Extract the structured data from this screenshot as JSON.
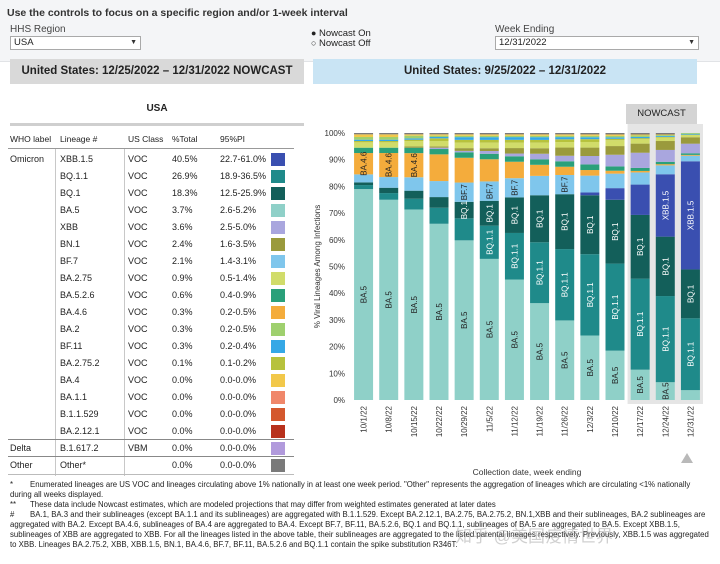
{
  "controls": {
    "instruction": "Use the controls to focus on a specific region and/or 1-week interval",
    "region_label": "HHS Region",
    "region_value": "USA",
    "nowcast_on": "Nowcast On",
    "nowcast_off": "Nowcast Off",
    "week_label": "Week Ending",
    "week_value": "12/31/2022"
  },
  "headers": {
    "left": "United States: 12/25/2022 – 12/31/2022 NOWCAST",
    "right": "United States: 9/25/2022 – 12/31/2022"
  },
  "table": {
    "title": "USA",
    "columns": [
      "WHO label",
      "Lineage #",
      "US Class",
      "%Total",
      "95%PI"
    ],
    "rows": [
      {
        "who": "Omicron",
        "lineage": "XBB.1.5",
        "cls": "VOC",
        "pct": "40.5%",
        "pi": "22.7-61.0%",
        "color": "#3a4fb0"
      },
      {
        "who": "",
        "lineage": "BQ.1.1",
        "cls": "VOC",
        "pct": "26.9%",
        "pi": "18.9-36.5%",
        "color": "#1f8a8a"
      },
      {
        "who": "",
        "lineage": "BQ.1",
        "cls": "VOC",
        "pct": "18.3%",
        "pi": "12.5-25.9%",
        "color": "#135f5a"
      },
      {
        "who": "",
        "lineage": "BA.5",
        "cls": "VOC",
        "pct": "3.7%",
        "pi": "2.6-5.2%",
        "color": "#8fd0c8"
      },
      {
        "who": "",
        "lineage": "XBB",
        "cls": "VOC",
        "pct": "3.6%",
        "pi": "2.5-5.0%",
        "color": "#a9a6de"
      },
      {
        "who": "",
        "lineage": "BN.1",
        "cls": "VOC",
        "pct": "2.4%",
        "pi": "1.6-3.5%",
        "color": "#9a9a3c"
      },
      {
        "who": "",
        "lineage": "BF.7",
        "cls": "VOC",
        "pct": "2.1%",
        "pi": "1.4-3.1%",
        "color": "#7fc6ec"
      },
      {
        "who": "",
        "lineage": "BA.2.75",
        "cls": "VOC",
        "pct": "0.9%",
        "pi": "0.5-1.4%",
        "color": "#d1dc6a"
      },
      {
        "who": "",
        "lineage": "BA.5.2.6",
        "cls": "VOC",
        "pct": "0.6%",
        "pi": "0.4-0.9%",
        "color": "#2aa07a"
      },
      {
        "who": "",
        "lineage": "BA.4.6",
        "cls": "VOC",
        "pct": "0.3%",
        "pi": "0.2-0.5%",
        "color": "#f4ac3c"
      },
      {
        "who": "",
        "lineage": "BA.2",
        "cls": "VOC",
        "pct": "0.3%",
        "pi": "0.2-0.5%",
        "color": "#9fd06e"
      },
      {
        "who": "",
        "lineage": "BF.11",
        "cls": "VOC",
        "pct": "0.3%",
        "pi": "0.2-0.4%",
        "color": "#35a8e6"
      },
      {
        "who": "",
        "lineage": "BA.2.75.2",
        "cls": "VOC",
        "pct": "0.1%",
        "pi": "0.1-0.2%",
        "color": "#b7c23c"
      },
      {
        "who": "",
        "lineage": "BA.4",
        "cls": "VOC",
        "pct": "0.0%",
        "pi": "0.0-0.0%",
        "color": "#f2c84a"
      },
      {
        "who": "",
        "lineage": "BA.1.1",
        "cls": "VOC",
        "pct": "0.0%",
        "pi": "0.0-0.0%",
        "color": "#f0876a"
      },
      {
        "who": "",
        "lineage": "B.1.1.529",
        "cls": "VOC",
        "pct": "0.0%",
        "pi": "0.0-0.0%",
        "color": "#d4582e"
      },
      {
        "who": "",
        "lineage": "BA.2.12.1",
        "cls": "VOC",
        "pct": "0.0%",
        "pi": "0.0-0.0%",
        "color": "#b8311c"
      },
      {
        "who": "Delta",
        "lineage": "B.1.617.2",
        "cls": "VBM",
        "pct": "0.0%",
        "pi": "0.0-0.0%",
        "color": "#b19adc"
      },
      {
        "who": "Other",
        "lineage": "Other*",
        "cls": "",
        "pct": "0.0%",
        "pi": "0.0-0.0%",
        "color": "#7a7a7a"
      }
    ]
  },
  "nowcast_button": "NOWCAST",
  "chart_data": {
    "type": "bar",
    "stacked": true,
    "ylabel": "% Viral Lineages Among Infections",
    "xlabel": "Collection date, week ending",
    "ylim": [
      0,
      100
    ],
    "yticks": [
      "0%",
      "10%",
      "20%",
      "30%",
      "40%",
      "50%",
      "60%",
      "70%",
      "80%",
      "90%",
      "100%"
    ],
    "categories": [
      "10/1/22",
      "10/8/22",
      "10/15/22",
      "10/22/22",
      "10/29/22",
      "11/5/22",
      "11/12/22",
      "11/19/22",
      "11/26/22",
      "12/3/22",
      "12/10/22",
      "12/17/22",
      "12/24/22",
      "12/31/22"
    ],
    "nowcast_from_index": 11,
    "series": [
      {
        "name": "BA.5",
        "color": "#8fd0c8",
        "values": [
          79,
          75,
          71,
          66,
          58,
          51,
          44,
          35,
          29,
          23,
          17,
          10,
          6,
          3.7
        ]
      },
      {
        "name": "BQ.1.1",
        "color": "#1f8a8a",
        "values": [
          1.5,
          2.5,
          4,
          6,
          8,
          12,
          17,
          22,
          26,
          29,
          30,
          30,
          29,
          26.9
        ]
      },
      {
        "name": "BQ.1",
        "color": "#135f5a",
        "values": [
          1,
          2,
          3,
          4,
          6,
          9,
          13,
          17,
          20,
          21,
          22,
          21,
          20,
          18.3
        ]
      },
      {
        "name": "XBB.1.5",
        "color": "#3a4fb0",
        "values": [
          0,
          0,
          0,
          0,
          0,
          0,
          0,
          0,
          0,
          1,
          4,
          10,
          21,
          40.5
        ]
      },
      {
        "name": "BF.7",
        "color": "#7fc6ec",
        "values": [
          3,
          4,
          5,
          6,
          7,
          7,
          7,
          7,
          7,
          6,
          5,
          4,
          3,
          2.1
        ]
      },
      {
        "name": "BA.4.6",
        "color": "#f4ac3c",
        "values": [
          8,
          9,
          9,
          10,
          9,
          8,
          6,
          4,
          3,
          2,
          1,
          0.5,
          0.4,
          0.3
        ]
      },
      {
        "name": "BA.5.2.6",
        "color": "#2aa07a",
        "values": [
          2,
          2,
          2,
          2,
          2,
          2,
          2,
          2,
          2,
          2,
          1.5,
          1,
          0.8,
          0.6
        ]
      },
      {
        "name": "XBB",
        "color": "#a9a6de",
        "values": [
          0,
          0,
          0,
          0.5,
          0.5,
          1,
          1,
          2,
          2,
          3,
          4,
          5,
          4,
          3.6
        ]
      },
      {
        "name": "BN.1",
        "color": "#9a9a3c",
        "values": [
          0,
          0,
          0.5,
          0.5,
          1,
          1,
          2,
          2,
          3,
          3,
          3,
          3,
          3,
          2.4
        ]
      },
      {
        "name": "BA.2.75",
        "color": "#d1dc6a",
        "values": [
          2,
          2,
          2,
          2,
          2,
          2,
          2,
          2,
          2,
          2,
          2,
          1.5,
          1.2,
          0.9
        ]
      },
      {
        "name": "BA.2.75.2",
        "color": "#b7c23c",
        "values": [
          0.5,
          0.5,
          0.5,
          1,
          1,
          1,
          1,
          1,
          1,
          1,
          0.5,
          0.3,
          0.2,
          0.1
        ]
      },
      {
        "name": "BF.11",
        "color": "#35a8e6",
        "values": [
          0.5,
          0.5,
          0.5,
          0.5,
          1,
          1,
          1,
          1,
          0.8,
          0.7,
          0.5,
          0.4,
          0.3,
          0.3
        ]
      },
      {
        "name": "BA.2",
        "color": "#9fd06e",
        "values": [
          1,
          1,
          1,
          0.5,
          0.5,
          0.5,
          0.5,
          0.5,
          0.5,
          0.5,
          0.5,
          0.5,
          0.3,
          0.3
        ]
      },
      {
        "name": "BA.4",
        "color": "#f2c84a",
        "values": [
          1,
          1,
          0.5,
          0.5,
          0.5,
          0.5,
          0.5,
          0.5,
          0.5,
          0.5,
          0.5,
          0.3,
          0.2,
          0.0
        ]
      },
      {
        "name": "Other",
        "color": "#7a7a7a",
        "values": [
          0.5,
          0.5,
          0.5,
          0.5,
          0.5,
          0.5,
          0.5,
          0.5,
          0.5,
          0.5,
          0.5,
          0.5,
          0.5,
          0.0
        ]
      }
    ],
    "bar_labels": [
      [
        {
          "text": "BA.5",
          "series": "BA.5"
        },
        {
          "text": "BA.4.6",
          "series": "BA.4.6"
        }
      ],
      [
        {
          "text": "BA.5",
          "series": "BA.5"
        },
        {
          "text": "BA.4.6",
          "series": "BA.4.6"
        }
      ],
      [
        {
          "text": "BA.5",
          "series": "BA.5"
        },
        {
          "text": "BA.4.6",
          "series": "BA.4.6"
        }
      ],
      [
        {
          "text": "BA.5",
          "series": "BA.5"
        }
      ],
      [
        {
          "text": "BA.5",
          "series": "BA.5"
        },
        {
          "text": "BQ.1",
          "series": "BQ.1"
        },
        {
          "text": "BF.7",
          "series": "BF.7"
        }
      ],
      [
        {
          "text": "BA.5",
          "series": "BA.5"
        },
        {
          "text": "BQ.1.1",
          "series": "BQ.1.1"
        },
        {
          "text": "BQ.1",
          "series": "BQ.1"
        },
        {
          "text": "BF.7",
          "series": "BF.7"
        }
      ],
      [
        {
          "text": "BA.5",
          "series": "BA.5"
        },
        {
          "text": "BQ.1.1",
          "series": "BQ.1.1"
        },
        {
          "text": "BQ.1",
          "series": "BQ.1"
        },
        {
          "text": "BF.7",
          "series": "BF.7"
        }
      ],
      [
        {
          "text": "BA.5",
          "series": "BA.5"
        },
        {
          "text": "BQ.1.1",
          "series": "BQ.1.1"
        },
        {
          "text": "BQ.1",
          "series": "BQ.1"
        }
      ],
      [
        {
          "text": "BA.5",
          "series": "BA.5"
        },
        {
          "text": "BQ.1.1",
          "series": "BQ.1.1"
        },
        {
          "text": "BQ.1",
          "series": "BQ.1"
        },
        {
          "text": "BF.7",
          "series": "BF.7"
        }
      ],
      [
        {
          "text": "BA.5",
          "series": "BA.5"
        },
        {
          "text": "BQ.1.1",
          "series": "BQ.1.1"
        },
        {
          "text": "BQ.1",
          "series": "BQ.1"
        }
      ],
      [
        {
          "text": "BA.5",
          "series": "BA.5"
        },
        {
          "text": "BQ.1.1",
          "series": "BQ.1.1"
        },
        {
          "text": "BQ.1",
          "series": "BQ.1"
        }
      ],
      [
        {
          "text": "BA.5",
          "series": "BA.5"
        },
        {
          "text": "BQ.1.1",
          "series": "BQ.1.1"
        },
        {
          "text": "BQ.1",
          "series": "BQ.1"
        }
      ],
      [
        {
          "text": "BA.5",
          "series": "BA.5"
        },
        {
          "text": "BQ.1.1",
          "series": "BQ.1.1"
        },
        {
          "text": "BQ.1",
          "series": "BQ.1"
        },
        {
          "text": "XBB.1.5",
          "series": "XBB.1.5"
        }
      ],
      [
        {
          "text": "BQ.1.1",
          "series": "BQ.1.1"
        },
        {
          "text": "BQ.1",
          "series": "BQ.1"
        },
        {
          "text": "XBB.1.5",
          "series": "XBB.1.5"
        }
      ]
    ]
  },
  "footnotes": [
    {
      "mark": "*",
      "text": "Enumerated lineages are US VOC and lineages circulating above 1% nationally in at least one week period. \"Other\" represents the aggregation of lineages which are circulating <1% nationally during all weeks displayed."
    },
    {
      "mark": "**",
      "text": "These data include Nowcast estimates, which are modeled projections that may differ from weighted estimates generated at later dates"
    },
    {
      "mark": "#",
      "text": "BA.1, BA.3 and their sublineages (except BA.1.1 and its sublineages) are aggregated with B.1.1.529. Except BA.2.12.1, BA.2.75, BA.2.75.2, BN.1,XBB and their sublineages, BA.2 sublineages are aggregated with BA.2. Except BA.4.6, sublineages of BA.4 are aggregated to BA.4. Except BF.7, BF.11, BA.5.2.6, BQ.1 and BQ.1.1, sublineages of BA.5 are aggregated to BA.5. Except XBB.1.5, sublineages of XBB are aggregated to XBB. For all the lineages listed in the above table, their sublineages are aggregated to the listed parental lineages respectively. Previously, XBB.1.5 was aggregated to XBB. Lineages BA.2.75.2, XBB, XBB.1.5, BN.1, BA.4.6, BF.7, BF.11, BA.5.2.6 and BQ.1.1 contain the spike substitution R346T."
    }
  ],
  "watermark": "知乎 @美国疫情世界"
}
